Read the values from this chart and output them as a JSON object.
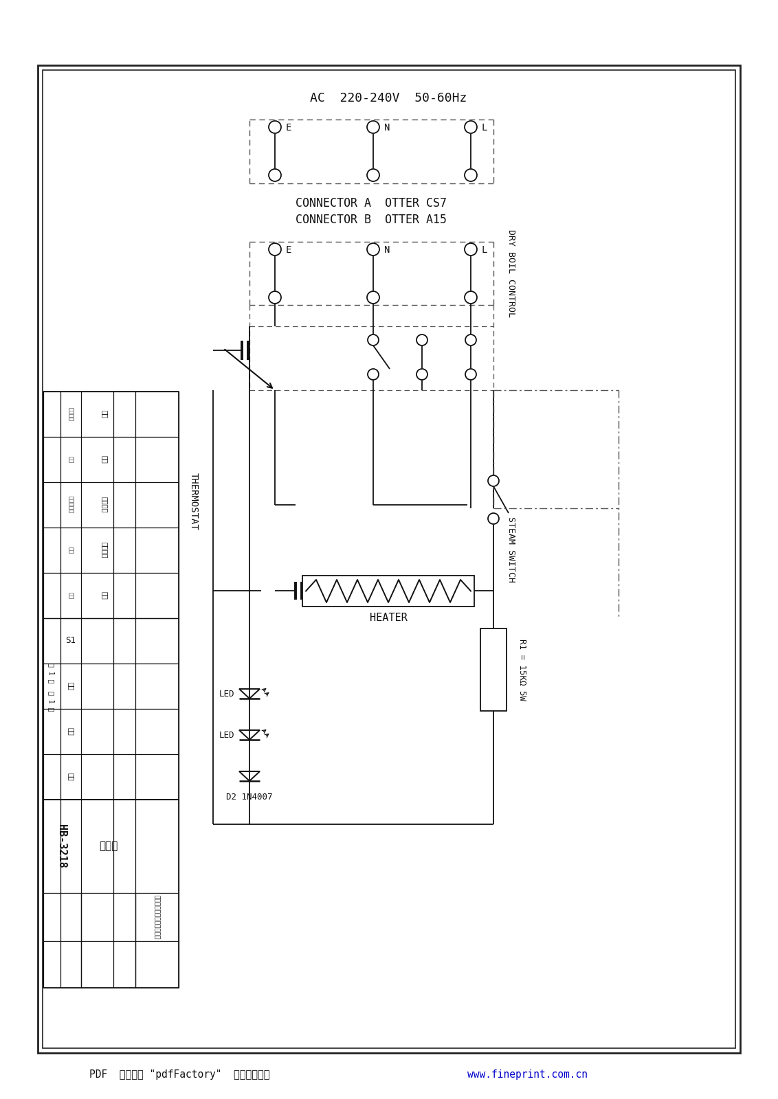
{
  "bg_color": "#ffffff",
  "line_color": "#111111",
  "dash_color": "#555555",
  "text_color": "#111111",
  "blue_color": "#0000cc",
  "ac_label": "AC  220-240V  50-60Hz",
  "connector_a": "CONNECTOR A  OTTER CS7",
  "connector_b": "CONNECTOR B  OTTER A15",
  "dry_boil": "DRY BOIL CONTROL",
  "steam_switch": "STEAM SWITCH",
  "thermostat": "THERMOSTAT",
  "heater": "HEATER",
  "r1_label": "R1 = 15KΩ 5W",
  "d2_label": "D2 1N4007",
  "led_label": "LED",
  "footer1": "PDF  文件使用 \"pdfFactory\"  试用版本创建  ",
  "footer2": "www.fineprint.com.cn",
  "table_title": "电路图",
  "company": "中山深凌电热电器有限公司",
  "hb_label": "HB-3218",
  "sheet_info": "共 1 张  第 1 张",
  "tbl_gaibiaozhiji": "更改标记",
  "tbl_shuliang": "数量",
  "tbl_gaibiaowenjianhao": "更改文件号",
  "tbl_qianzi": "签字",
  "tbl_riqi": "日期",
  "tbl_guige": "规格",
  "tbl_guiding": "规定",
  "tbl_fuhe": "符合规定",
  "tbl_gefang": "各方签字",
  "tbl_jiazhi": "价値",
  "tbl_banci": "版次",
  "tbl_zhongliang": "重量",
  "tbl_bili": "比例"
}
